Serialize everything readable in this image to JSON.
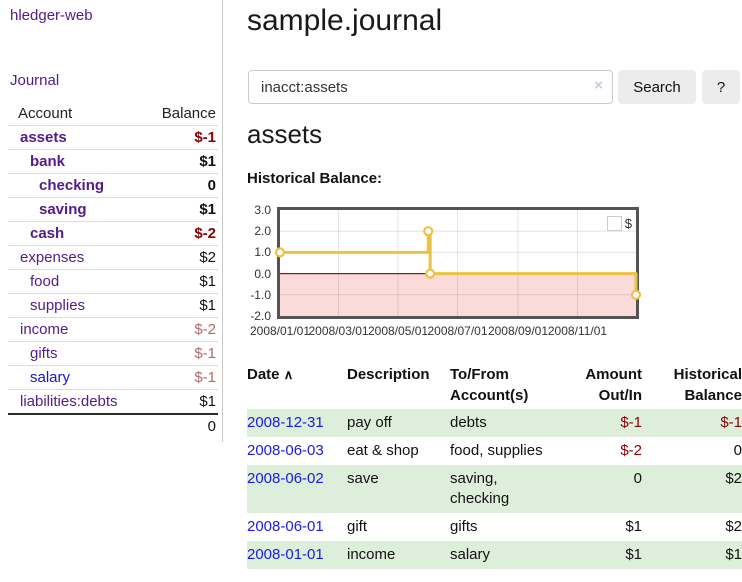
{
  "colors": {
    "accent_purple": "#551a8b",
    "link_blue": "#1515e0",
    "date_link_blue": "#1a1ae6",
    "negative_strong": "#8b0000",
    "negative_soft": "#b56a6a",
    "row_highlight_green": "#ddeeda",
    "series_gold": "#edc240",
    "negative_region_pink": "#fbdada",
    "zero_line_red": "#8b1a1a",
    "chart_border_gray": "#545454"
  },
  "app": {
    "title": "hledger-web",
    "journal_link": "Journal"
  },
  "sidebar": {
    "account_header": "Account",
    "balance_header": "Balance",
    "accounts": [
      {
        "name": "assets",
        "level": 1,
        "bold": true,
        "link_color": "purple",
        "balance": "$-1",
        "balance_style": "neg-strong"
      },
      {
        "name": "bank",
        "level": 2,
        "bold": true,
        "link_color": "purple",
        "balance": "$1",
        "balance_style": "plain"
      },
      {
        "name": "checking",
        "level": 3,
        "bold": true,
        "link_color": "purple",
        "balance": "0",
        "balance_style": "plain"
      },
      {
        "name": "saving",
        "level": 3,
        "bold": true,
        "link_color": "purple",
        "balance": "$1",
        "balance_style": "plain"
      },
      {
        "name": "cash",
        "level": 2,
        "bold": true,
        "link_color": "purple",
        "balance": "$-2",
        "balance_style": "neg-strong"
      },
      {
        "name": "expenses",
        "level": 1,
        "bold": false,
        "link_color": "purple",
        "balance": "$2",
        "balance_style": "plain"
      },
      {
        "name": "food",
        "level": 2,
        "bold": false,
        "link_color": "purple",
        "balance": "$1",
        "balance_style": "plain"
      },
      {
        "name": "supplies",
        "level": 2,
        "bold": false,
        "link_color": "purple",
        "balance": "$1",
        "balance_style": "plain"
      },
      {
        "name": "income",
        "level": 1,
        "bold": false,
        "link_color": "purple",
        "balance": "$-2",
        "balance_style": "neg-soft"
      },
      {
        "name": "gifts",
        "level": 2,
        "bold": false,
        "link_color": "purple",
        "balance": "$-1",
        "balance_style": "neg-soft"
      },
      {
        "name": "salary",
        "level": 2,
        "bold": false,
        "link_color": "blue",
        "balance": "$-1",
        "balance_style": "neg-soft"
      },
      {
        "name": "liabilities:debts",
        "level": 1,
        "bold": false,
        "link_color": "purple",
        "balance": "$1",
        "balance_style": "plain"
      }
    ],
    "total_balance": "0"
  },
  "header": {
    "title": "sample.journal"
  },
  "search": {
    "value": "inacct:assets",
    "clear_icon": "×",
    "search_button": "Search",
    "help_button": "?"
  },
  "account_view": {
    "title": "assets",
    "chart_heading": "Historical Balance:"
  },
  "chart_data": {
    "type": "line",
    "title": "Historical Balance:",
    "step": true,
    "series": [
      {
        "name": "$",
        "color": "#edc240",
        "points": [
          {
            "date": "2008-01-01",
            "day": 0,
            "value": 1.0
          },
          {
            "date": "2008-06-01",
            "day": 152,
            "value": 2.0
          },
          {
            "date": "2008-06-03",
            "day": 154,
            "value": 0.0
          },
          {
            "date": "2008-12-31",
            "day": 365,
            "value": -1.0
          }
        ]
      }
    ],
    "x_ticks": [
      {
        "label": "2008/01/01",
        "day": 0
      },
      {
        "label": "2008/03/01",
        "day": 60
      },
      {
        "label": "2008/05/01",
        "day": 121
      },
      {
        "label": "2008/07/01",
        "day": 182
      },
      {
        "label": "2008/09/01",
        "day": 244
      },
      {
        "label": "2008/11/01",
        "day": 305
      }
    ],
    "x_range_days": [
      0,
      365
    ],
    "y_ticks": [
      {
        "label": "3.0",
        "value": 3
      },
      {
        "label": "2.0",
        "value": 2
      },
      {
        "label": "1.0",
        "value": 1
      },
      {
        "label": "0.0",
        "value": 0
      },
      {
        "label": "-1.0",
        "value": -1
      },
      {
        "label": "-2.0",
        "value": -2
      }
    ],
    "ylim": [
      -2,
      3
    ],
    "grid": true,
    "legend": {
      "position": "top-right",
      "label": "$"
    },
    "negative_region": {
      "from": 0,
      "to": -2
    }
  },
  "register": {
    "columns": {
      "date": "Date",
      "date_sort_icon": "∧",
      "description": "Description",
      "tofrom_line1": "To/From",
      "tofrom_line2": "Account(s)",
      "amount_line1": "Amount",
      "amount_line2": "Out/In",
      "balance_line1": "Historical",
      "balance_line2": "Balance"
    },
    "rows": [
      {
        "date": "2008-12-31",
        "description": "pay off",
        "accounts": "debts",
        "amount": "$-1",
        "amount_negative": true,
        "balance": "$-1",
        "balance_negative": true,
        "highlighted": true
      },
      {
        "date": "2008-06-03",
        "description": "eat & shop",
        "accounts": "food, supplies",
        "amount": "$-2",
        "amount_negative": true,
        "balance": "0",
        "balance_negative": false,
        "highlighted": false
      },
      {
        "date": "2008-06-02",
        "description": "save",
        "accounts": "saving, checking",
        "amount": "0",
        "amount_negative": false,
        "balance": "$2",
        "balance_negative": false,
        "highlighted": true
      },
      {
        "date": "2008-06-01",
        "description": "gift",
        "accounts": "gifts",
        "amount": "$1",
        "amount_negative": false,
        "balance": "$2",
        "balance_negative": false,
        "highlighted": false
      },
      {
        "date": "2008-01-01",
        "description": "income",
        "accounts": "salary",
        "amount": "$1",
        "amount_negative": false,
        "balance": "$1",
        "balance_negative": false,
        "highlighted": true
      }
    ]
  }
}
